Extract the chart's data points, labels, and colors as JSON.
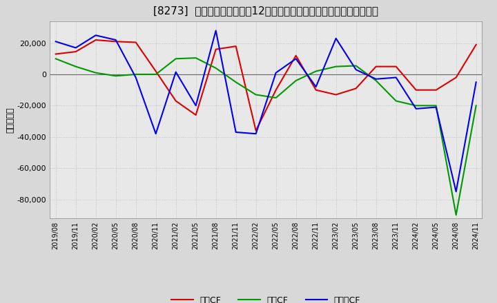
{
  "title": "[8273]  キャッシュフローの12か月移動合計の対前年同期増減額の推移",
  "ylabel": "（百万円）",
  "background_color": "#d8d8d8",
  "plot_bg_color": "#e8e8e8",
  "grid_color": "#aaaaaa",
  "ylim": [
    -92000,
    34000
  ],
  "yticks": [
    -80000,
    -60000,
    -40000,
    -20000,
    0,
    20000
  ],
  "x_labels": [
    "2019/08",
    "2019/11",
    "2020/02",
    "2020/05",
    "2020/08",
    "2020/11",
    "2021/02",
    "2021/05",
    "2021/08",
    "2021/11",
    "2022/02",
    "2022/05",
    "2022/08",
    "2022/11",
    "2023/02",
    "2023/05",
    "2023/08",
    "2023/11",
    "2024/02",
    "2024/05",
    "2024/08",
    "2024/11"
  ],
  "operating_cf": [
    13000,
    14500,
    22000,
    21000,
    20500,
    2000,
    -17000,
    -26000,
    16000,
    18000,
    -36000,
    -10000,
    12000,
    -10000,
    -13000,
    -9000,
    5000,
    5000,
    -10000,
    -10000,
    -2000,
    19000
  ],
  "investing_cf": [
    10000,
    5000,
    1000,
    -1000,
    0,
    0,
    10000,
    10500,
    4000,
    -5000,
    -13000,
    -15000,
    -4000,
    2000,
    5000,
    5500,
    -4000,
    -17000,
    -20000,
    -20000,
    -90000,
    -20000
  ],
  "free_cf": [
    21000,
    17000,
    25000,
    22000,
    -2000,
    -38000,
    1500,
    -20000,
    28000,
    -37000,
    -38000,
    1000,
    10000,
    -8000,
    23000,
    3000,
    -3000,
    -2000,
    -22000,
    -21000,
    -75000,
    -5000
  ],
  "line_colors": {
    "operating": "#dd0000",
    "investing": "#009900",
    "free": "#0000ee"
  },
  "legend_labels": [
    "営業CF",
    "投賃CF",
    "フリーCF"
  ]
}
